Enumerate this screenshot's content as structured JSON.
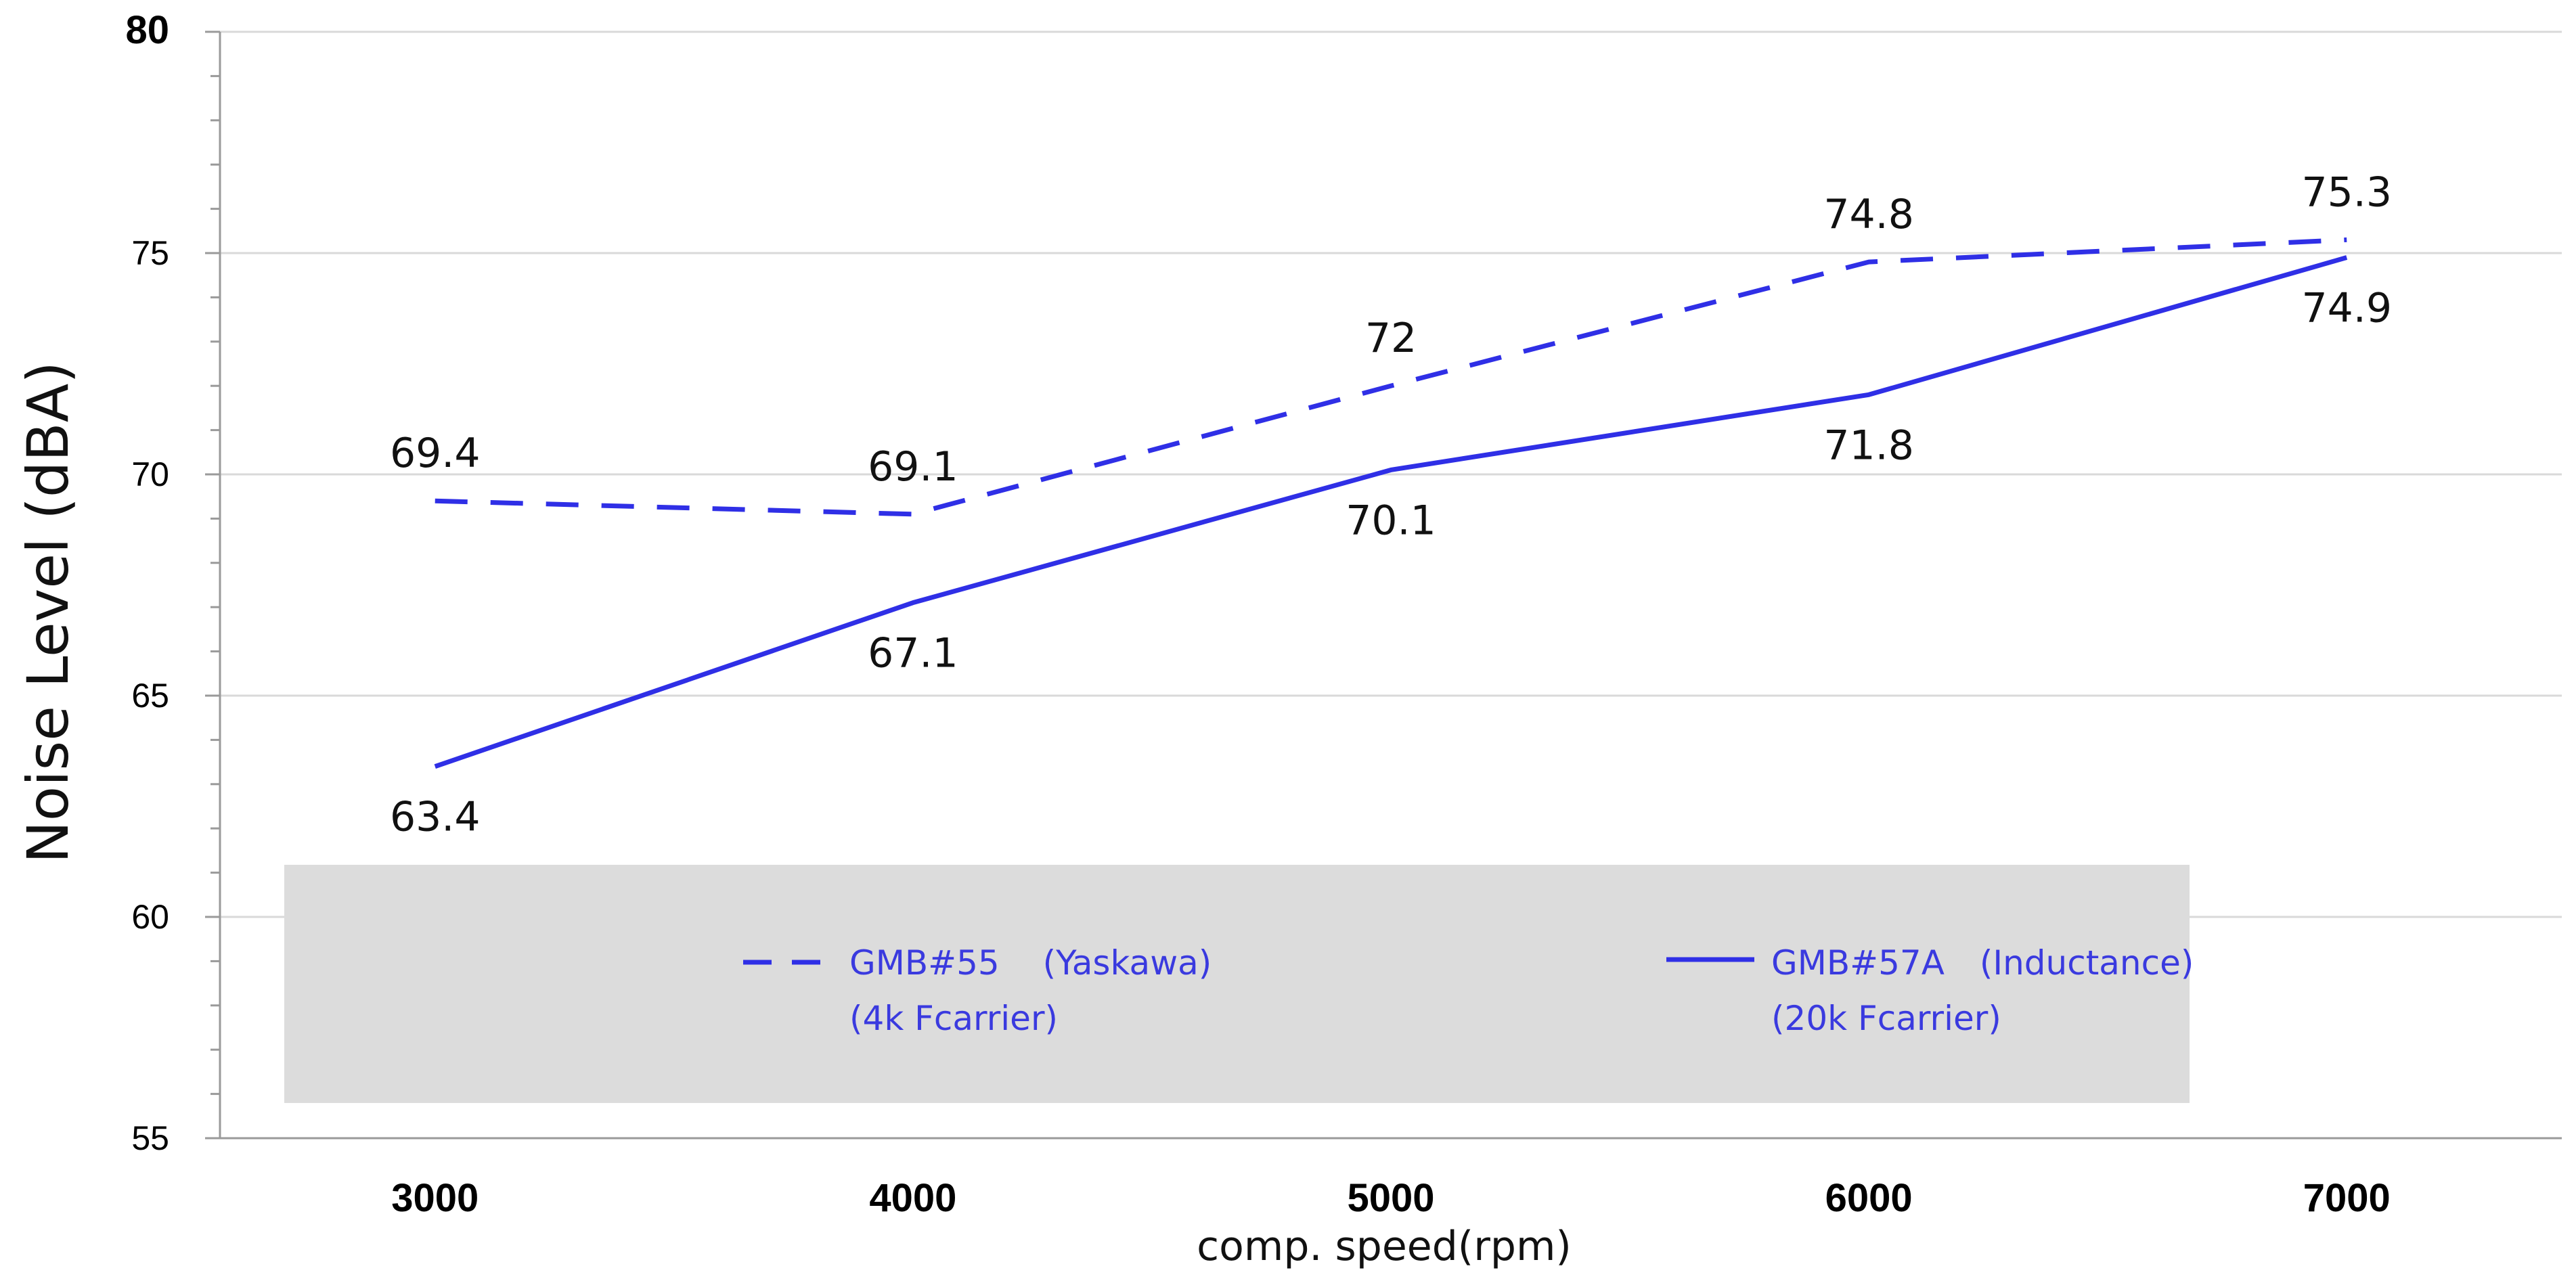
{
  "chart_data": {
    "type": "line",
    "title": "",
    "xlabel": "comp. speed(rpm)",
    "ylabel": "Noise Level (dBA)",
    "x": [
      3000,
      4000,
      5000,
      6000,
      7000
    ],
    "xticks": [
      "3000",
      "4000",
      "5000",
      "6000",
      "7000"
    ],
    "xlim": [
      2550,
      7450
    ],
    "ylim": [
      55,
      80
    ],
    "yticks": [
      "55",
      "60",
      "65",
      "70",
      "75",
      "80"
    ],
    "grid": "horizontal",
    "legend_position": "bottom",
    "series": [
      {
        "name": "GMB#55",
        "name_suffix": "(Yaskawa)",
        "sub": "(4k Fcarrier)",
        "style": "dashed",
        "color": "#2f2fe6",
        "values": [
          69.4,
          69.1,
          72,
          74.8,
          75.3
        ],
        "labels": [
          "69.4",
          "69.1",
          "72",
          "74.8",
          "75.3"
        ]
      },
      {
        "name": "GMB#57A",
        "name_suffix": "(Inductance)",
        "sub": "(20k Fcarrier)",
        "style": "solid",
        "color": "#2f2fe6",
        "values": [
          63.4,
          67.1,
          70.1,
          71.8,
          74.9
        ],
        "labels": [
          "63.4",
          "67.1",
          "70.1",
          "71.8",
          "74.9"
        ]
      }
    ],
    "colors": {
      "legend_bg": "#dcdcdc",
      "grid": "#d9d9d9",
      "axis": "#9a9a9a"
    }
  }
}
